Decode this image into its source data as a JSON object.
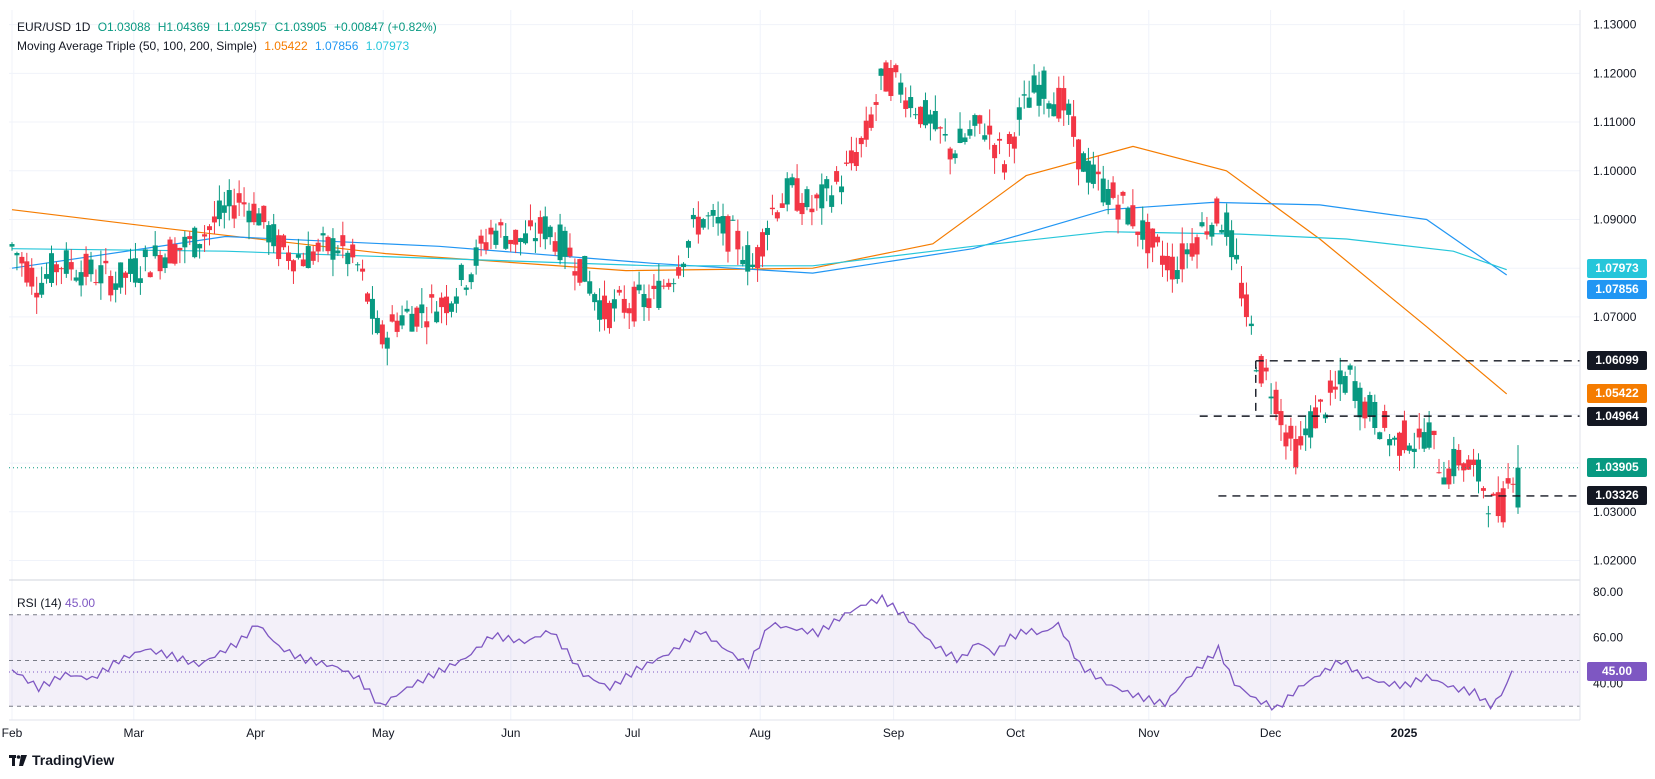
{
  "header": {
    "symbol": "EUR/USD",
    "interval": "1D",
    "open": "O1.03088",
    "high": "H1.04369",
    "low": "L1.02957",
    "close": "C1.03905",
    "change": "+0.00847 (+0.82%)",
    "ma_label": "Moving Average Triple (50, 100, 200, Simple)",
    "ma50": "1.05422",
    "ma100": "1.07856",
    "ma200": "1.07973"
  },
  "rsi": {
    "label": "RSI (14)",
    "value": "45.00"
  },
  "brand": "TradingView",
  "colors": {
    "up": "#089981",
    "down": "#f23645",
    "ma50": "#f57c00",
    "ma100": "#2196f3",
    "ma200": "#26c6da",
    "rsi": "#7e57c2",
    "dark_tag": "#131722"
  },
  "chart_data": [
    {
      "type": "candlestick",
      "title": "EUR/USD, 1D",
      "x_labels": [
        "Feb",
        "Mar",
        "Apr",
        "May",
        "Jun",
        "Jul",
        "Aug",
        "Sep",
        "Oct",
        "Nov",
        "Dec",
        "2025"
      ],
      "y_ticks": [
        "1.13000",
        "1.12000",
        "1.11000",
        "1.10000",
        "1.09000",
        "1.08000",
        "1.07000",
        "1.06000",
        "1.05000",
        "1.04000",
        "1.03000",
        "1.02000"
      ],
      "ylim": [
        1.016,
        1.133
      ],
      "grid": true,
      "close_series": [
        [
          0,
          1.0845
        ],
        [
          10,
          1.0768
        ],
        [
          18,
          1.0812
        ],
        [
          28,
          1.0795
        ],
        [
          40,
          1.0775
        ],
        [
          48,
          1.0805
        ],
        [
          58,
          1.0835
        ],
        [
          68,
          1.0852
        ],
        [
          85,
          1.0943
        ],
        [
          92,
          1.0915
        ],
        [
          100,
          1.0842
        ],
        [
          108,
          1.0823
        ],
        [
          122,
          1.0848
        ],
        [
          130,
          1.08
        ],
        [
          138,
          1.065
        ],
        [
          145,
          1.07
        ],
        [
          155,
          1.0715
        ],
        [
          163,
          1.0735
        ],
        [
          172,
          1.08
        ],
        [
          180,
          1.088
        ],
        [
          192,
          1.0855
        ],
        [
          200,
          1.0885
        ],
        [
          212,
          1.0815
        ],
        [
          222,
          1.071
        ],
        [
          230,
          1.0725
        ],
        [
          240,
          1.0735
        ],
        [
          248,
          1.0795
        ],
        [
          258,
          1.0905
        ],
        [
          265,
          1.0885
        ],
        [
          272,
          1.0855
        ],
        [
          278,
          1.08
        ],
        [
          284,
          1.0915
        ],
        [
          292,
          1.096
        ],
        [
          300,
          1.092
        ],
        [
          312,
          1.099
        ],
        [
          320,
          1.107
        ],
        [
          326,
          1.1185
        ],
        [
          330,
          1.119
        ],
        [
          335,
          1.116
        ],
        [
          340,
          1.1125
        ],
        [
          347,
          1.108
        ],
        [
          352,
          1.104
        ],
        [
          358,
          1.107
        ],
        [
          364,
          1.1095
        ],
        [
          368,
          1.106
        ],
        [
          372,
          1.1015
        ],
        [
          376,
          1.109
        ],
        [
          382,
          1.116
        ],
        [
          386,
          1.1175
        ],
        [
          390,
          1.115
        ],
        [
          395,
          1.113
        ],
        [
          400,
          1.103
        ],
        [
          405,
          1.0985
        ],
        [
          412,
          1.095
        ],
        [
          420,
          1.0905
        ],
        [
          428,
          1.084
        ],
        [
          436,
          1.08
        ],
        [
          442,
          1.085
        ],
        [
          448,
          1.0895
        ],
        [
          452,
          1.091
        ],
        [
          455,
          1.089
        ],
        [
          460,
          1.0775
        ],
        [
          463,
          1.07
        ],
        [
          467,
          1.06
        ],
        [
          473,
          1.055
        ],
        [
          478,
          1.045
        ],
        [
          482,
          1.042
        ],
        [
          486,
          1.048
        ],
        [
          492,
          1.052
        ],
        [
          498,
          1.056
        ],
        [
          502,
          1.058
        ],
        [
          505,
          1.053
        ],
        [
          512,
          1.049
        ],
        [
          518,
          1.044
        ],
        [
          524,
          1.046
        ],
        [
          527,
          1.043
        ],
        [
          530,
          1.048
        ],
        [
          534,
          1.041
        ],
        [
          538,
          1.038
        ],
        [
          542,
          1.041
        ],
        [
          546,
          1.039
        ],
        [
          550,
          1.037
        ],
        [
          555,
          1.031
        ],
        [
          558,
          1.03
        ],
        [
          562,
          1.039
        ]
      ],
      "moving_averages": [
        {
          "name": "MA 50",
          "value": 1.05422
        },
        {
          "name": "MA 100",
          "value": 1.07856
        },
        {
          "name": "MA 200",
          "value": 1.07973
        }
      ],
      "levels": [
        1.06099,
        1.04964,
        1.03326
      ],
      "last_price": 1.03905,
      "price_tags": [
        "1.07973",
        "1.07856",
        "1.06099",
        "1.05422",
        "1.04964",
        "1.03905",
        "1.03326"
      ]
    },
    {
      "type": "line",
      "title": "RSI (14)",
      "y_ticks": [
        "80.00",
        "60.00",
        "40.00"
      ],
      "ylim": [
        24,
        83
      ],
      "bands": [
        30,
        50,
        70
      ],
      "values": [
        [
          0,
          46
        ],
        [
          10,
          38
        ],
        [
          20,
          44
        ],
        [
          30,
          42
        ],
        [
          40,
          50
        ],
        [
          50,
          55
        ],
        [
          60,
          52
        ],
        [
          70,
          48
        ],
        [
          85,
          58
        ],
        [
          92,
          66
        ],
        [
          100,
          56
        ],
        [
          108,
          51
        ],
        [
          122,
          47
        ],
        [
          130,
          42
        ],
        [
          138,
          30
        ],
        [
          148,
          38
        ],
        [
          158,
          44
        ],
        [
          170,
          51
        ],
        [
          180,
          61
        ],
        [
          192,
          58
        ],
        [
          202,
          63
        ],
        [
          214,
          44
        ],
        [
          224,
          38
        ],
        [
          234,
          46
        ],
        [
          246,
          53
        ],
        [
          258,
          63
        ],
        [
          266,
          56
        ],
        [
          276,
          48
        ],
        [
          284,
          66
        ],
        [
          292,
          64
        ],
        [
          302,
          62
        ],
        [
          312,
          70
        ],
        [
          320,
          75
        ],
        [
          326,
          77
        ],
        [
          334,
          70
        ],
        [
          345,
          57
        ],
        [
          355,
          50
        ],
        [
          362,
          58
        ],
        [
          368,
          53
        ],
        [
          374,
          60
        ],
        [
          380,
          63
        ],
        [
          386,
          62
        ],
        [
          392,
          66
        ],
        [
          400,
          48
        ],
        [
          410,
          40
        ],
        [
          420,
          35
        ],
        [
          432,
          31
        ],
        [
          440,
          42
        ],
        [
          446,
          48
        ],
        [
          452,
          55
        ],
        [
          458,
          40
        ],
        [
          466,
          33
        ],
        [
          474,
          29
        ],
        [
          482,
          38
        ],
        [
          490,
          44
        ],
        [
          498,
          50
        ],
        [
          506,
          43
        ],
        [
          514,
          40
        ],
        [
          522,
          39
        ],
        [
          530,
          43
        ],
        [
          540,
          38
        ],
        [
          548,
          36
        ],
        [
          554,
          30
        ],
        [
          558,
          35
        ],
        [
          562,
          45
        ]
      ],
      "value": 45.0
    }
  ]
}
